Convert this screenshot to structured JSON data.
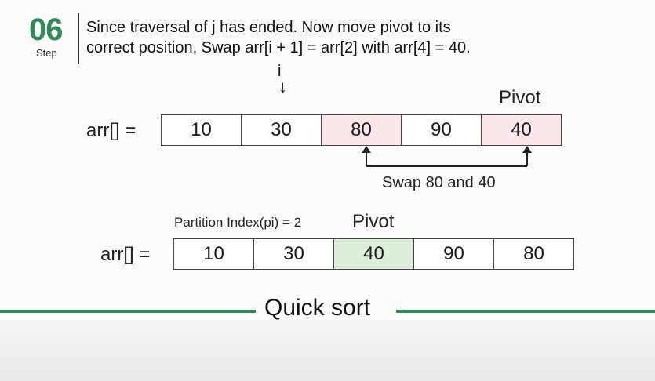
{
  "step": {
    "number": "06",
    "label": "Step"
  },
  "description": {
    "line1": "Since traversal of j has ended. Now move pivot to its",
    "line2": "correct position, Swap arr[i + 1] = arr[2] with arr[4] = 40."
  },
  "index_marker": {
    "label": "i"
  },
  "top_array": {
    "label": "arr[] =",
    "pivot_label": "Pivot",
    "values": [
      "10",
      "30",
      "80",
      "90",
      "40"
    ]
  },
  "swap_text": "Swap 80 and 40",
  "bottom_array": {
    "label": "arr[] =",
    "partition_text": "Partition Index(pi) = 2",
    "pivot_label": "Pivot",
    "values": [
      "10",
      "30",
      "40",
      "90",
      "80"
    ]
  },
  "title": "Quick sort",
  "colors": {
    "accent": "#2e8b57",
    "swap_highlight": "#fbe6ea",
    "pivot_placed": "#dcefd9"
  }
}
